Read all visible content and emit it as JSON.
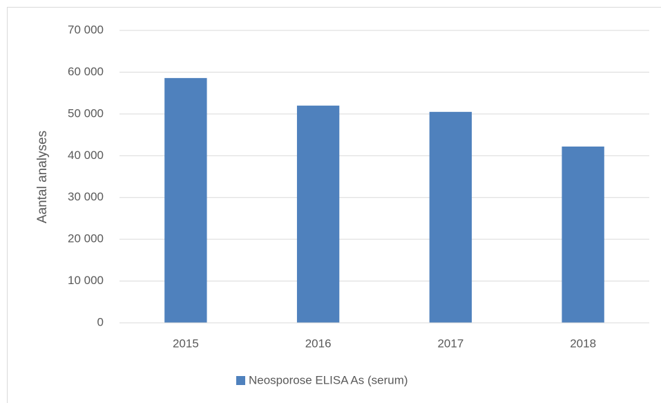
{
  "chart_data": {
    "type": "bar",
    "y_label": "Aantal analyses",
    "categories": [
      "2015",
      "2016",
      "2017",
      "2018"
    ],
    "series": [
      {
        "name": "Neosporose ELISA As (serum)",
        "color": "#4f81bd",
        "values": [
          58600,
          52000,
          50500,
          42200
        ]
      }
    ],
    "ylim": [
      0,
      70000
    ],
    "yticks": [
      0,
      {
        "value": 10000,
        "label": "10 000"
      },
      {
        "value": 20000,
        "label": "20 000"
      },
      {
        "value": 30000,
        "label": "30 000"
      },
      {
        "value": 40000,
        "label": "40 000"
      },
      {
        "value": 50000,
        "label": "50 000"
      },
      {
        "value": 60000,
        "label": "60 000"
      },
      {
        "value": 70000,
        "label": "70 000"
      }
    ],
    "grid": true,
    "legend": "bottom"
  }
}
